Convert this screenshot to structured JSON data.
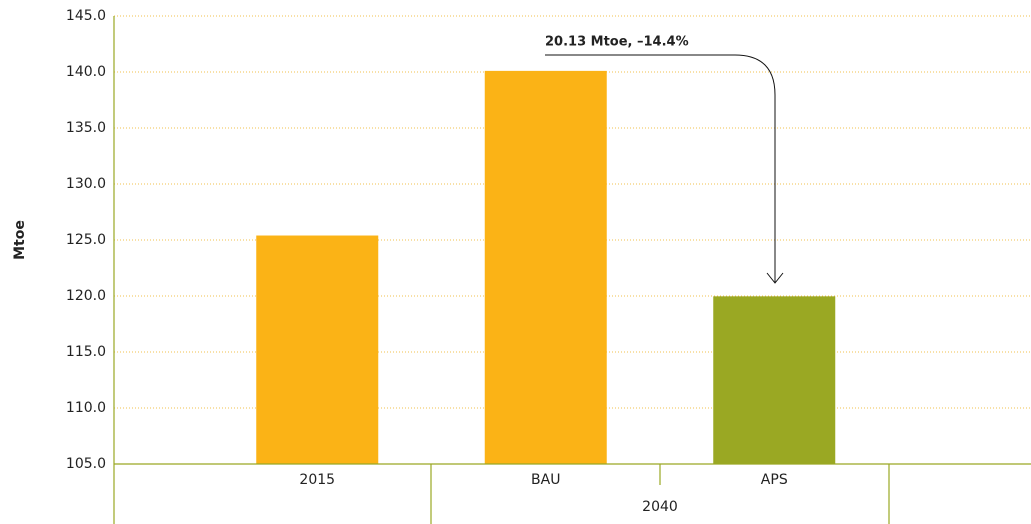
{
  "chart_data": {
    "type": "bar",
    "y_label": "Mtoe",
    "categories": [
      "2015",
      "BAU",
      "APS"
    ],
    "group_label": "2040",
    "values": [
      125.4,
      140.1,
      119.97
    ],
    "colors": [
      "#fbb316",
      "#fbb316",
      "#9aa823"
    ],
    "annotation": "20.13 Mtoe, –14.4%",
    "ylim": [
      105,
      145
    ],
    "yticks": [
      {
        "value": 105,
        "label": "105.0"
      },
      {
        "value": 110,
        "label": "110.0"
      },
      {
        "value": 115,
        "label": "115.0"
      },
      {
        "value": 120,
        "label": "120.0"
      },
      {
        "value": 125,
        "label": "125.0"
      },
      {
        "value": 130,
        "label": "130.0"
      },
      {
        "value": 135,
        "label": "135.0"
      },
      {
        "value": 140,
        "label": "140.0"
      },
      {
        "value": 145,
        "label": "145.0"
      }
    ],
    "grid": true
  }
}
